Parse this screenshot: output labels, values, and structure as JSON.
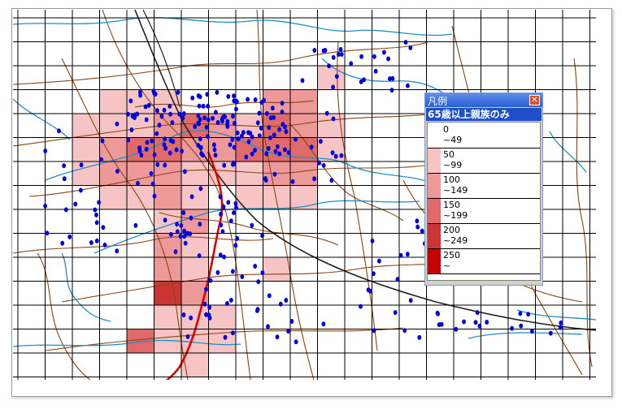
{
  "legend": {
    "title": "凡例",
    "close_symbol": "✕",
    "subtitle": "65歳以上親族のみ",
    "classes": [
      {
        "from": "0",
        "to": "~49",
        "color": "#ffffff"
      },
      {
        "from": "50",
        "to": "~99",
        "color": "#f6c4c4"
      },
      {
        "from": "100",
        "to": "~149",
        "color": "#ee9999"
      },
      {
        "from": "150",
        "to": "~199",
        "color": "#e06a6a"
      },
      {
        "from": "200",
        "to": "~249",
        "color": "#cc3535"
      },
      {
        "from": "250",
        "to": "~",
        "color": "#c40000"
      }
    ]
  },
  "map": {
    "colors": {
      "grid": "#000000",
      "road": "#8b4513",
      "river": "#1e90c8",
      "railway": "#202020",
      "highlight_road": "#e00000",
      "facility_point": "#0000e0"
    },
    "shaded_cells": [
      {
        "col": 11,
        "row": 2,
        "cls": 1
      },
      {
        "col": 3,
        "row": 3,
        "cls": 1
      },
      {
        "col": 4,
        "row": 3,
        "cls": 1
      },
      {
        "col": 5,
        "row": 3,
        "cls": 1
      },
      {
        "col": 9,
        "row": 3,
        "cls": 2
      },
      {
        "col": 10,
        "row": 3,
        "cls": 2
      },
      {
        "col": 2,
        "row": 4,
        "cls": 1
      },
      {
        "col": 3,
        "row": 4,
        "cls": 1
      },
      {
        "col": 4,
        "row": 4,
        "cls": 1
      },
      {
        "col": 5,
        "row": 4,
        "cls": 2
      },
      {
        "col": 6,
        "row": 4,
        "cls": 3
      },
      {
        "col": 7,
        "row": 4,
        "cls": 2
      },
      {
        "col": 8,
        "row": 4,
        "cls": 1
      },
      {
        "col": 9,
        "row": 4,
        "cls": 3
      },
      {
        "col": 10,
        "row": 4,
        "cls": 2
      },
      {
        "col": 11,
        "row": 4,
        "cls": 1
      },
      {
        "col": 2,
        "row": 5,
        "cls": 1
      },
      {
        "col": 3,
        "row": 5,
        "cls": 2
      },
      {
        "col": 4,
        "row": 5,
        "cls": 3
      },
      {
        "col": 5,
        "row": 5,
        "cls": 3
      },
      {
        "col": 6,
        "row": 5,
        "cls": 2
      },
      {
        "col": 7,
        "row": 5,
        "cls": 2
      },
      {
        "col": 8,
        "row": 5,
        "cls": 3
      },
      {
        "col": 9,
        "row": 5,
        "cls": 3
      },
      {
        "col": 10,
        "row": 5,
        "cls": 3
      },
      {
        "col": 11,
        "row": 5,
        "cls": 1
      },
      {
        "col": 2,
        "row": 6,
        "cls": 1
      },
      {
        "col": 3,
        "row": 6,
        "cls": 2
      },
      {
        "col": 4,
        "row": 6,
        "cls": 2
      },
      {
        "col": 5,
        "row": 6,
        "cls": 2
      },
      {
        "col": 6,
        "row": 6,
        "cls": 1
      },
      {
        "col": 7,
        "row": 6,
        "cls": 1
      },
      {
        "col": 8,
        "row": 6,
        "cls": 1
      },
      {
        "col": 9,
        "row": 6,
        "cls": 2
      },
      {
        "col": 10,
        "row": 6,
        "cls": 2
      },
      {
        "col": 3,
        "row": 7,
        "cls": 1
      },
      {
        "col": 4,
        "row": 7,
        "cls": 1
      },
      {
        "col": 5,
        "row": 7,
        "cls": 2
      },
      {
        "col": 6,
        "row": 7,
        "cls": 1
      },
      {
        "col": 8,
        "row": 7,
        "cls": 1
      },
      {
        "col": 9,
        "row": 7,
        "cls": 1
      },
      {
        "col": 10,
        "row": 7,
        "cls": 1
      },
      {
        "col": 5,
        "row": 8,
        "cls": 1
      },
      {
        "col": 6,
        "row": 8,
        "cls": 2
      },
      {
        "col": 5,
        "row": 9,
        "cls": 2
      },
      {
        "col": 6,
        "row": 9,
        "cls": 1
      },
      {
        "col": 5,
        "row": 10,
        "cls": 2
      },
      {
        "col": 6,
        "row": 10,
        "cls": 1
      },
      {
        "col": 9,
        "row": 10,
        "cls": 1
      },
      {
        "col": 5,
        "row": 11,
        "cls": 4
      },
      {
        "col": 6,
        "row": 11,
        "cls": 2
      },
      {
        "col": 5,
        "row": 12,
        "cls": 1
      },
      {
        "col": 6,
        "row": 12,
        "cls": 1
      },
      {
        "col": 7,
        "row": 12,
        "cls": 1
      },
      {
        "col": 4,
        "row": 13,
        "cls": 3
      },
      {
        "col": 5,
        "row": 13,
        "cls": 1
      },
      {
        "col": 6,
        "row": 13,
        "cls": 1
      },
      {
        "col": 7,
        "row": 13,
        "cls": 1
      },
      {
        "col": 6,
        "row": 14,
        "cls": 1
      }
    ]
  }
}
